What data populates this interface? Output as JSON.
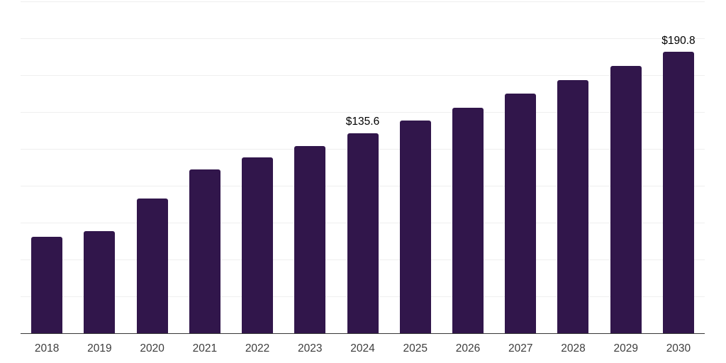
{
  "chart_data": {
    "type": "bar",
    "title": "",
    "xlabel": "",
    "ylabel": "",
    "categories": [
      "2018",
      "2019",
      "2020",
      "2021",
      "2022",
      "2023",
      "2024",
      "2025",
      "2026",
      "2027",
      "2028",
      "2029",
      "2030"
    ],
    "values": [
      65.6,
      69.0,
      91.2,
      111.0,
      119.1,
      127.1,
      135.6,
      144.0,
      153.0,
      162.3,
      171.6,
      181.2,
      190.8
    ],
    "data_labels": [
      {
        "category": "2024",
        "text": "$135.6"
      },
      {
        "category": "2030",
        "text": "$190.8"
      }
    ],
    "ylim": [
      0,
      225
    ],
    "gridline_step": 25,
    "grid": "horizontal-only",
    "legend": "none",
    "y_tick_labels": "none",
    "colors": {
      "bar": "#31164b",
      "gridline": "#efefef",
      "axis_line": "#383838",
      "tick_label": "#3d3d3d",
      "data_label": "#000000",
      "background": "#ffffff"
    }
  }
}
